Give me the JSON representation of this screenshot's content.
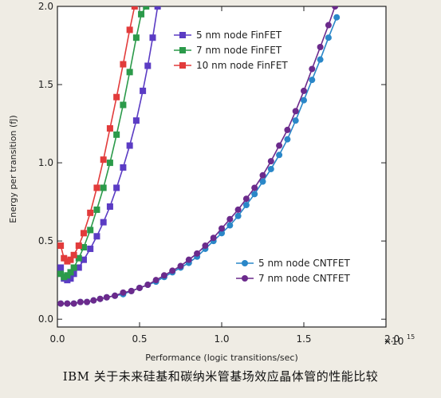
{
  "caption": "IBM 关于未来硅基和碳纳米管基场效应晶体管的性能比较",
  "chart_data": {
    "type": "line",
    "xlabel": "Performance (logic transitions/sec)",
    "ylabel": "Energy per transition (fJ)",
    "x_multiplier_label": "×10",
    "x_multiplier_exp": "15",
    "xlim": [
      0,
      2.0
    ],
    "ylim": [
      -0.05,
      2.0
    ],
    "x_ticks": [
      0.0,
      0.5,
      1.0,
      1.5,
      2.0
    ],
    "x_tick_labels": [
      "0.0",
      "0.5",
      "1.0",
      "1.5",
      "2.0"
    ],
    "y_ticks": [
      0.0,
      0.5,
      1.0,
      1.5,
      2.0
    ],
    "y_tick_labels": [
      "0.0",
      "0.5",
      "1.0",
      "1.5",
      "2.0"
    ],
    "grid": false,
    "legends": [
      {
        "placement": "top-left",
        "entries": [
          "5 nm node FinFET",
          "7 nm node FinFET",
          "10 nm node FinFET"
        ]
      },
      {
        "placement": "lower-right",
        "entries": [
          "5 nm node CNTFET",
          "7 nm node CNTFET"
        ]
      }
    ],
    "series": [
      {
        "name": "5 nm node FinFET",
        "color": "#5b3cc4",
        "marker": "square",
        "x": [
          0.02,
          0.04,
          0.06,
          0.08,
          0.1,
          0.13,
          0.16,
          0.2,
          0.24,
          0.28,
          0.32,
          0.36,
          0.4,
          0.44,
          0.48,
          0.52,
          0.55,
          0.58,
          0.61
        ],
        "y": [
          0.33,
          0.26,
          0.25,
          0.26,
          0.29,
          0.33,
          0.38,
          0.45,
          0.53,
          0.62,
          0.72,
          0.84,
          0.97,
          1.11,
          1.27,
          1.46,
          1.62,
          1.8,
          2.0
        ]
      },
      {
        "name": "7 nm node FinFET",
        "color": "#2b9a4a",
        "marker": "square",
        "x": [
          0.02,
          0.04,
          0.06,
          0.08,
          0.1,
          0.13,
          0.16,
          0.2,
          0.24,
          0.28,
          0.32,
          0.36,
          0.4,
          0.44,
          0.48,
          0.51,
          0.54
        ],
        "y": [
          0.29,
          0.27,
          0.28,
          0.3,
          0.33,
          0.39,
          0.46,
          0.57,
          0.7,
          0.84,
          1.0,
          1.18,
          1.37,
          1.58,
          1.8,
          1.95,
          2.0
        ]
      },
      {
        "name": "10 nm node FinFET",
        "color": "#e23b3b",
        "marker": "square",
        "x": [
          0.02,
          0.04,
          0.06,
          0.08,
          0.1,
          0.13,
          0.16,
          0.2,
          0.24,
          0.28,
          0.32,
          0.36,
          0.4,
          0.44,
          0.47
        ],
        "y": [
          0.47,
          0.39,
          0.37,
          0.38,
          0.41,
          0.47,
          0.55,
          0.68,
          0.84,
          1.02,
          1.22,
          1.42,
          1.63,
          1.85,
          2.0
        ]
      },
      {
        "name": "5 nm node CNTFET",
        "color": "#2a87c8",
        "marker": "circle",
        "x": [
          0.02,
          0.06,
          0.1,
          0.14,
          0.18,
          0.22,
          0.26,
          0.3,
          0.35,
          0.4,
          0.45,
          0.5,
          0.55,
          0.6,
          0.65,
          0.7,
          0.75,
          0.8,
          0.85,
          0.9,
          0.95,
          1.0,
          1.05,
          1.1,
          1.15,
          1.2,
          1.25,
          1.3,
          1.35,
          1.4,
          1.45,
          1.5,
          1.55,
          1.6,
          1.65,
          1.7
        ],
        "y": [
          0.1,
          0.1,
          0.1,
          0.11,
          0.11,
          0.12,
          0.13,
          0.14,
          0.15,
          0.16,
          0.18,
          0.2,
          0.22,
          0.24,
          0.27,
          0.3,
          0.33,
          0.36,
          0.4,
          0.45,
          0.5,
          0.55,
          0.6,
          0.66,
          0.73,
          0.8,
          0.88,
          0.96,
          1.05,
          1.15,
          1.27,
          1.4,
          1.53,
          1.66,
          1.8,
          1.93
        ]
      },
      {
        "name": "7 nm node CNTFET",
        "color": "#6b2a8c",
        "marker": "circle",
        "x": [
          0.02,
          0.06,
          0.1,
          0.14,
          0.18,
          0.22,
          0.26,
          0.3,
          0.35,
          0.4,
          0.45,
          0.5,
          0.55,
          0.6,
          0.65,
          0.7,
          0.75,
          0.8,
          0.85,
          0.9,
          0.95,
          1.0,
          1.05,
          1.1,
          1.15,
          1.2,
          1.25,
          1.3,
          1.35,
          1.4,
          1.45,
          1.5,
          1.55,
          1.6,
          1.65,
          1.69
        ],
        "y": [
          0.1,
          0.1,
          0.1,
          0.11,
          0.11,
          0.12,
          0.13,
          0.14,
          0.15,
          0.17,
          0.18,
          0.2,
          0.22,
          0.25,
          0.28,
          0.31,
          0.34,
          0.38,
          0.42,
          0.47,
          0.52,
          0.58,
          0.64,
          0.7,
          0.77,
          0.84,
          0.92,
          1.01,
          1.11,
          1.21,
          1.33,
          1.46,
          1.6,
          1.74,
          1.88,
          2.0
        ]
      }
    ]
  }
}
